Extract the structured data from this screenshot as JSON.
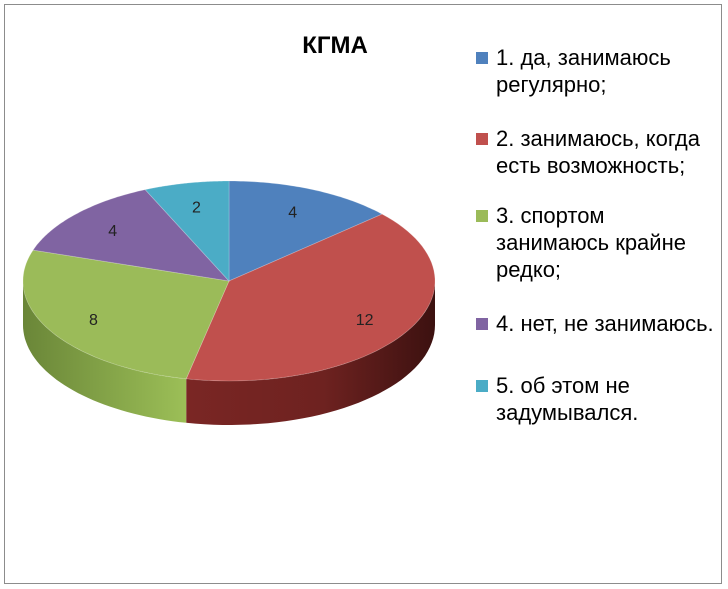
{
  "chart_data": {
    "type": "pie",
    "title": "КГМА",
    "categories": [
      "1. да, занимаюсь регулярно;",
      "2. занимаюсь, когда есть возможность;",
      "3. спортом занимаюсь крайне редко;",
      "4. нет, не занимаюсь.",
      "5. об этом не задумывался."
    ],
    "values": [
      4,
      12,
      8,
      4,
      2
    ],
    "colors": [
      "#4f81bd",
      "#c0504d",
      "#9bbb59",
      "#8064a2",
      "#4bacc6"
    ],
    "legend_position": "right",
    "style": "3d"
  }
}
